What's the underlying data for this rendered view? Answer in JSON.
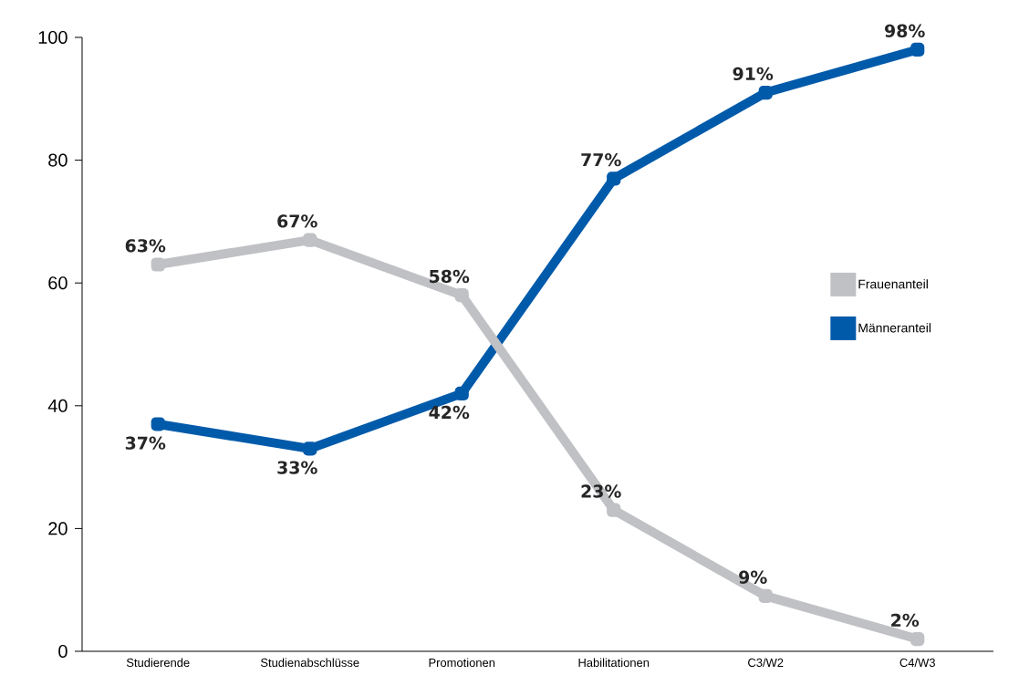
{
  "chart_data": {
    "type": "line",
    "categories": [
      "Studierende",
      "Studienabschlüsse",
      "Promotionen",
      "Habilitationen",
      "C3/W2",
      "C4/W3"
    ],
    "series": [
      {
        "name": "Frauenanteil",
        "color": "#c0c1c4",
        "values": [
          63,
          67,
          58,
          23,
          9,
          2
        ],
        "value_labels": [
          "63%",
          "67%",
          "58%",
          "23%",
          "9%",
          "2%"
        ]
      },
      {
        "name": "Männeranteil",
        "color": "#005aaa",
        "values": [
          37,
          33,
          42,
          77,
          91,
          98
        ],
        "value_labels": [
          "37%",
          "33%",
          "42%",
          "77%",
          "91%",
          "98%"
        ]
      }
    ],
    "ylim": [
      0,
      100
    ],
    "yticks": [
      0,
      20,
      40,
      60,
      80,
      100
    ],
    "grid": false,
    "legend": "right",
    "marker": "square",
    "line_style": "solid"
  }
}
